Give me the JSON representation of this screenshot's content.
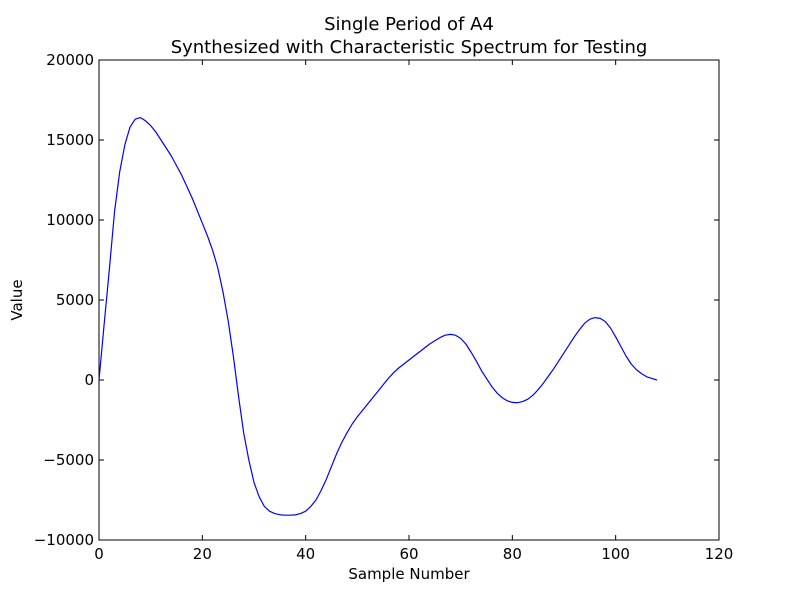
{
  "chart_data": {
    "type": "line",
    "title": [
      "Single Period of A4",
      "Synthesized with Characteristic Spectrum for Testing"
    ],
    "xlabel": "Sample Number",
    "ylabel": "Value",
    "xlim": [
      0,
      120
    ],
    "ylim": [
      -10000,
      20000
    ],
    "xticks": [
      0,
      20,
      40,
      60,
      80,
      100,
      120
    ],
    "yticks": [
      -10000,
      -5000,
      0,
      5000,
      10000,
      15000,
      20000
    ],
    "ytick_labels": [
      "−10000",
      "−5000",
      "0",
      "5000",
      "10000",
      "15000",
      "20000"
    ],
    "grid": false,
    "line_color": "#0000ff",
    "series": [
      {
        "x": [
          0,
          1,
          2,
          3,
          4,
          5,
          6,
          7,
          8,
          9,
          10,
          11,
          12,
          13,
          14,
          15,
          16,
          17,
          18,
          19,
          20,
          21,
          22,
          23,
          24,
          25,
          26,
          27,
          28,
          29,
          30,
          31,
          32,
          33,
          34,
          35,
          36,
          37,
          38,
          39,
          40,
          41,
          42,
          43,
          44,
          45,
          46,
          47,
          48,
          49,
          50,
          51,
          52,
          53,
          54,
          55,
          56,
          57,
          58,
          59,
          60,
          61,
          62,
          63,
          64,
          65,
          66,
          67,
          68,
          69,
          70,
          71,
          72,
          73,
          74,
          75,
          76,
          77,
          78,
          79,
          80,
          81,
          82,
          83,
          84,
          85,
          86,
          87,
          88,
          89,
          90,
          91,
          92,
          93,
          94,
          95,
          96,
          97,
          98,
          99,
          100,
          101,
          102,
          103,
          104,
          105,
          106,
          107,
          108
        ],
        "y": [
          0,
          3500,
          6900,
          10500,
          13000,
          14700,
          15800,
          16300,
          16400,
          16200,
          15900,
          15500,
          15000,
          14500,
          14000,
          13400,
          12800,
          12100,
          11400,
          10600,
          9800,
          9000,
          8100,
          7000,
          5500,
          3700,
          1500,
          -1000,
          -3300,
          -5000,
          -6400,
          -7300,
          -7900,
          -8200,
          -8350,
          -8420,
          -8450,
          -8450,
          -8430,
          -8350,
          -8200,
          -7900,
          -7500,
          -6900,
          -6200,
          -5400,
          -4600,
          -3900,
          -3300,
          -2750,
          -2300,
          -1900,
          -1500,
          -1100,
          -700,
          -300,
          100,
          450,
          750,
          1000,
          1250,
          1500,
          1750,
          2000,
          2250,
          2450,
          2650,
          2800,
          2850,
          2800,
          2600,
          2250,
          1750,
          1200,
          600,
          100,
          -400,
          -800,
          -1100,
          -1300,
          -1400,
          -1420,
          -1350,
          -1200,
          -950,
          -600,
          -200,
          250,
          700,
          1200,
          1700,
          2200,
          2700,
          3150,
          3550,
          3800,
          3900,
          3850,
          3650,
          3250,
          2700,
          2100,
          1500,
          1000,
          650,
          400,
          200,
          100,
          0
        ]
      }
    ]
  }
}
